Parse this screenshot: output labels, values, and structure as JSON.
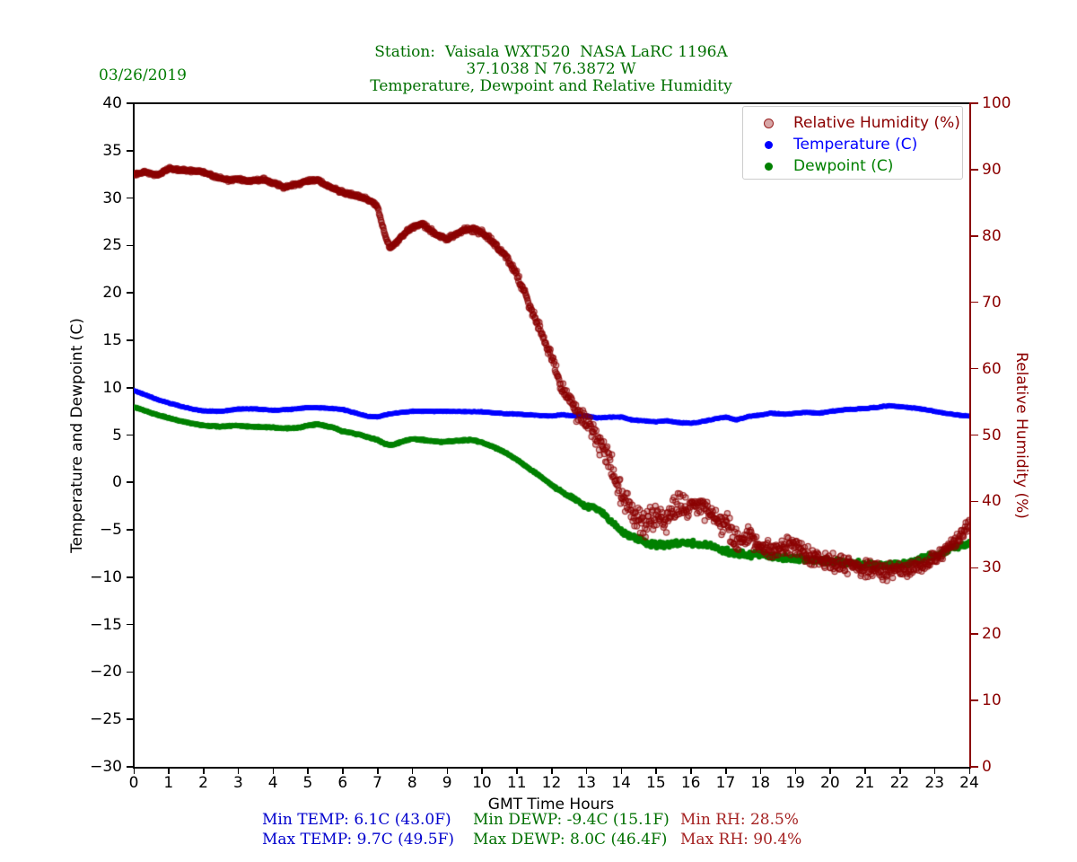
{
  "header": {
    "date": "03/26/2019",
    "title_line1": "Station:  Vaisala WXT520  NASA LaRC 1196A",
    "title_line2": "37.1038 N 76.3872 W",
    "title_line3": "Temperature, Dewpoint and Relative Humidity"
  },
  "colors": {
    "title_green": "#006F00",
    "date_green": "#007C00",
    "temp_blue": "#0000FF",
    "dew_green": "#008000",
    "rh_darkred": "#8B0000",
    "stats_temp": "#0000CD",
    "stats_dewp": "#007000",
    "stats_rh": "#A52222",
    "axis_black": "#000000"
  },
  "chart_data": {
    "type": "scatter",
    "title": "Temperature, Dewpoint and Relative Humidity",
    "xlabel": "GMT Time Hours",
    "ylabel_left": "Temperature and Dewpoint (C)",
    "ylabel_right": "Relative Humidity (%)",
    "xlim": [
      0,
      24
    ],
    "ylim_left": [
      -30,
      40
    ],
    "ylim_right": [
      0,
      100
    ],
    "x_ticks": [
      0,
      1,
      2,
      3,
      4,
      5,
      6,
      7,
      8,
      9,
      10,
      11,
      12,
      13,
      14,
      15,
      16,
      17,
      18,
      19,
      20,
      21,
      22,
      23,
      24
    ],
    "y_ticks_left": [
      40,
      35,
      30,
      25,
      20,
      15,
      10,
      5,
      0,
      -5,
      -10,
      -15,
      -20,
      -25,
      -30
    ],
    "y_ticks_right": [
      100,
      90,
      80,
      70,
      60,
      50,
      40,
      30,
      20,
      10,
      0
    ],
    "grid": false,
    "sampling_minutes": 1,
    "legend": {
      "position": "upper right",
      "entries": [
        {
          "label": "Relative Humidity (%)",
          "color": "#8B0000",
          "marker": "circle-open"
        },
        {
          "label": "Temperature (C)",
          "color": "#0000FF",
          "marker": "dot"
        },
        {
          "label": "Dewpoint (C)",
          "color": "#008000",
          "marker": "dot"
        }
      ]
    },
    "series": [
      {
        "name": "Temperature (C)",
        "axis": "left",
        "color": "#0000FF",
        "marker": "dot",
        "z": 1,
        "seed": 3,
        "anchors": [
          [
            0,
            9.7
          ],
          [
            0.3,
            9.3
          ],
          [
            0.7,
            8.7
          ],
          [
            1,
            8.4
          ],
          [
            1.3,
            8.1
          ],
          [
            1.7,
            7.7
          ],
          [
            2,
            7.55
          ],
          [
            2.5,
            7.5
          ],
          [
            3,
            7.75
          ],
          [
            3.5,
            7.75
          ],
          [
            4,
            7.6
          ],
          [
            4.5,
            7.7
          ],
          [
            5,
            7.9
          ],
          [
            5.5,
            7.85
          ],
          [
            6,
            7.7
          ],
          [
            6.3,
            7.4
          ],
          [
            6.7,
            7.0
          ],
          [
            7,
            6.9
          ],
          [
            7.3,
            7.2
          ],
          [
            7.7,
            7.4
          ],
          [
            8,
            7.5
          ],
          [
            9,
            7.5
          ],
          [
            10,
            7.45
          ],
          [
            10.5,
            7.3
          ],
          [
            11,
            7.2
          ],
          [
            11.5,
            7.1
          ],
          [
            12,
            7.0
          ],
          [
            12.3,
            7.15
          ],
          [
            12.7,
            7.0
          ],
          [
            13,
            7.05
          ],
          [
            13.3,
            6.8
          ],
          [
            13.7,
            6.9
          ],
          [
            14,
            6.9
          ],
          [
            14.3,
            6.6
          ],
          [
            14.7,
            6.5
          ],
          [
            15,
            6.4
          ],
          [
            15.3,
            6.5
          ],
          [
            15.7,
            6.3
          ],
          [
            16,
            6.25
          ],
          [
            16.3,
            6.4
          ],
          [
            16.7,
            6.7
          ],
          [
            17,
            6.9
          ],
          [
            17.3,
            6.6
          ],
          [
            17.7,
            7.0
          ],
          [
            18,
            7.1
          ],
          [
            18.3,
            7.3
          ],
          [
            18.7,
            7.2
          ],
          [
            19,
            7.3
          ],
          [
            19.3,
            7.4
          ],
          [
            19.7,
            7.3
          ],
          [
            20,
            7.5
          ],
          [
            20.5,
            7.7
          ],
          [
            21,
            7.8
          ],
          [
            21.3,
            7.9
          ],
          [
            21.7,
            8.1
          ],
          [
            22,
            8.0
          ],
          [
            22.3,
            7.9
          ],
          [
            22.7,
            7.7
          ],
          [
            23,
            7.5
          ],
          [
            23.3,
            7.3
          ],
          [
            23.7,
            7.1
          ],
          [
            24,
            7.0
          ]
        ],
        "noise": [
          [
            0,
            0.06
          ],
          [
            24,
            0.06
          ]
        ]
      },
      {
        "name": "Dewpoint (C)",
        "axis": "left",
        "color": "#008000",
        "marker": "dot",
        "z": 2,
        "seed": 5,
        "anchors": [
          [
            0,
            8.0
          ],
          [
            0.3,
            7.6
          ],
          [
            0.7,
            7.1
          ],
          [
            1,
            6.8
          ],
          [
            1.3,
            6.5
          ],
          [
            1.7,
            6.2
          ],
          [
            2,
            6.0
          ],
          [
            2.5,
            5.9
          ],
          [
            3,
            6.0
          ],
          [
            3.3,
            5.9
          ],
          [
            3.7,
            5.85
          ],
          [
            4,
            5.8
          ],
          [
            4.3,
            5.7
          ],
          [
            4.7,
            5.75
          ],
          [
            5,
            6.0
          ],
          [
            5.3,
            6.15
          ],
          [
            5.7,
            5.8
          ],
          [
            6,
            5.4
          ],
          [
            6.3,
            5.2
          ],
          [
            6.7,
            4.8
          ],
          [
            7,
            4.5
          ],
          [
            7.2,
            4.1
          ],
          [
            7.4,
            3.9
          ],
          [
            7.7,
            4.3
          ],
          [
            8,
            4.6
          ],
          [
            8.3,
            4.5
          ],
          [
            8.7,
            4.3
          ],
          [
            9,
            4.3
          ],
          [
            9.3,
            4.4
          ],
          [
            9.7,
            4.5
          ],
          [
            10,
            4.2
          ],
          [
            10.3,
            3.8
          ],
          [
            10.7,
            3.1
          ],
          [
            11,
            2.4
          ],
          [
            11.3,
            1.6
          ],
          [
            11.7,
            0.6
          ],
          [
            12,
            -0.3
          ],
          [
            12.3,
            -1.0
          ],
          [
            12.7,
            -1.8
          ],
          [
            13,
            -2.6
          ],
          [
            13.2,
            -2.5
          ],
          [
            13.5,
            -3.3
          ],
          [
            13.8,
            -4.5
          ],
          [
            14,
            -5.1
          ],
          [
            14.3,
            -5.7
          ],
          [
            14.7,
            -6.3
          ],
          [
            15,
            -6.6
          ],
          [
            15.3,
            -6.6
          ],
          [
            15.7,
            -6.4
          ],
          [
            16,
            -6.3
          ],
          [
            16.3,
            -6.5
          ],
          [
            16.7,
            -6.9
          ],
          [
            17,
            -7.2
          ],
          [
            17.3,
            -7.5
          ],
          [
            17.7,
            -7.7
          ],
          [
            18,
            -7.5
          ],
          [
            18.3,
            -7.7
          ],
          [
            18.7,
            -8.0
          ],
          [
            19,
            -8.0
          ],
          [
            19.5,
            -8.2
          ],
          [
            20,
            -8.3
          ],
          [
            20.5,
            -8.5
          ],
          [
            21,
            -8.6
          ],
          [
            21.5,
            -8.8
          ],
          [
            22,
            -8.7
          ],
          [
            22.5,
            -8.2
          ],
          [
            23,
            -7.7
          ],
          [
            23.5,
            -7.0
          ],
          [
            24,
            -6.5
          ]
        ],
        "noise": [
          [
            0,
            0.07
          ],
          [
            12,
            0.1
          ],
          [
            13,
            0.3
          ],
          [
            14,
            0.4
          ],
          [
            24,
            0.4
          ]
        ]
      },
      {
        "name": "Relative Humidity (%)",
        "axis": "right",
        "color": "#8B0000",
        "marker": "circle-open",
        "z": 3,
        "seed": 7,
        "anchors": [
          [
            0,
            89.3
          ],
          [
            0.3,
            89.6
          ],
          [
            0.7,
            89.2
          ],
          [
            1,
            90.2
          ],
          [
            1.3,
            90.0
          ],
          [
            1.7,
            89.8
          ],
          [
            2,
            89.6
          ],
          [
            2.3,
            89.0
          ],
          [
            2.7,
            88.4
          ],
          [
            3,
            88.6
          ],
          [
            3.3,
            88.2
          ],
          [
            3.7,
            88.6
          ],
          [
            4,
            88.0
          ],
          [
            4.3,
            87.4
          ],
          [
            4.7,
            87.8
          ],
          [
            5,
            88.3
          ],
          [
            5.3,
            88.4
          ],
          [
            5.7,
            87.2
          ],
          [
            6,
            86.6
          ],
          [
            6.3,
            86.2
          ],
          [
            6.7,
            85.6
          ],
          [
            7,
            84.4
          ],
          [
            7.2,
            80.5
          ],
          [
            7.35,
            78.2
          ],
          [
            7.5,
            78.8
          ],
          [
            7.7,
            80.0
          ],
          [
            8,
            81.3
          ],
          [
            8.3,
            81.8
          ],
          [
            8.7,
            80.2
          ],
          [
            9,
            79.6
          ],
          [
            9.3,
            80.4
          ],
          [
            9.6,
            81.0
          ],
          [
            10,
            80.6
          ],
          [
            10.3,
            79.2
          ],
          [
            10.7,
            76.8
          ],
          [
            11,
            74.0
          ],
          [
            11.3,
            70.5
          ],
          [
            11.7,
            65.5
          ],
          [
            12,
            61.5
          ],
          [
            12.3,
            57.0
          ],
          [
            12.7,
            53.5
          ],
          [
            13,
            52.5
          ],
          [
            13.3,
            49.5
          ],
          [
            13.7,
            45.5
          ],
          [
            14,
            41.5
          ],
          [
            14.3,
            38.5
          ],
          [
            14.7,
            36.5
          ],
          [
            15,
            38.0
          ],
          [
            15.3,
            37.5
          ],
          [
            15.7,
            39.5
          ],
          [
            16,
            39.0
          ],
          [
            16.3,
            40.0
          ],
          [
            16.7,
            37.5
          ],
          [
            17,
            36.5
          ],
          [
            17.3,
            34.0
          ],
          [
            17.7,
            34.5
          ],
          [
            18,
            33.5
          ],
          [
            18.3,
            32.5
          ],
          [
            18.7,
            33.0
          ],
          [
            19,
            33.5
          ],
          [
            19.3,
            32.0
          ],
          [
            19.7,
            31.5
          ],
          [
            20,
            31.0
          ],
          [
            20.3,
            30.8
          ],
          [
            20.7,
            30.2
          ],
          [
            21,
            30.0
          ],
          [
            21.3,
            29.4
          ],
          [
            21.7,
            29.2
          ],
          [
            22,
            29.6
          ],
          [
            22.3,
            29.8
          ],
          [
            22.7,
            30.5
          ],
          [
            23,
            31.5
          ],
          [
            23.3,
            32.5
          ],
          [
            23.7,
            34.5
          ],
          [
            24,
            36.8
          ]
        ],
        "noise": [
          [
            0,
            0.25
          ],
          [
            7,
            0.3
          ],
          [
            10,
            0.5
          ],
          [
            12,
            1.0
          ],
          [
            13,
            1.8
          ],
          [
            14,
            2.5
          ],
          [
            17,
            2.3
          ],
          [
            18,
            1.7
          ],
          [
            22,
            1.5
          ],
          [
            23,
            1.3
          ],
          [
            24,
            1.2
          ]
        ]
      }
    ]
  },
  "stats": {
    "temp": {
      "min": "Min TEMP: 6.1C (43.0F)",
      "max": "Max TEMP: 9.7C (49.5F)",
      "color": "#0000CD"
    },
    "dewp": {
      "min": "Min DEWP: -9.4C (15.1F)",
      "max": "Max DEWP: 8.0C (46.4F)",
      "color": "#007000"
    },
    "rh": {
      "min": "Min RH: 28.5%",
      "max": "Max RH: 90.4%",
      "color": "#A52222"
    }
  }
}
